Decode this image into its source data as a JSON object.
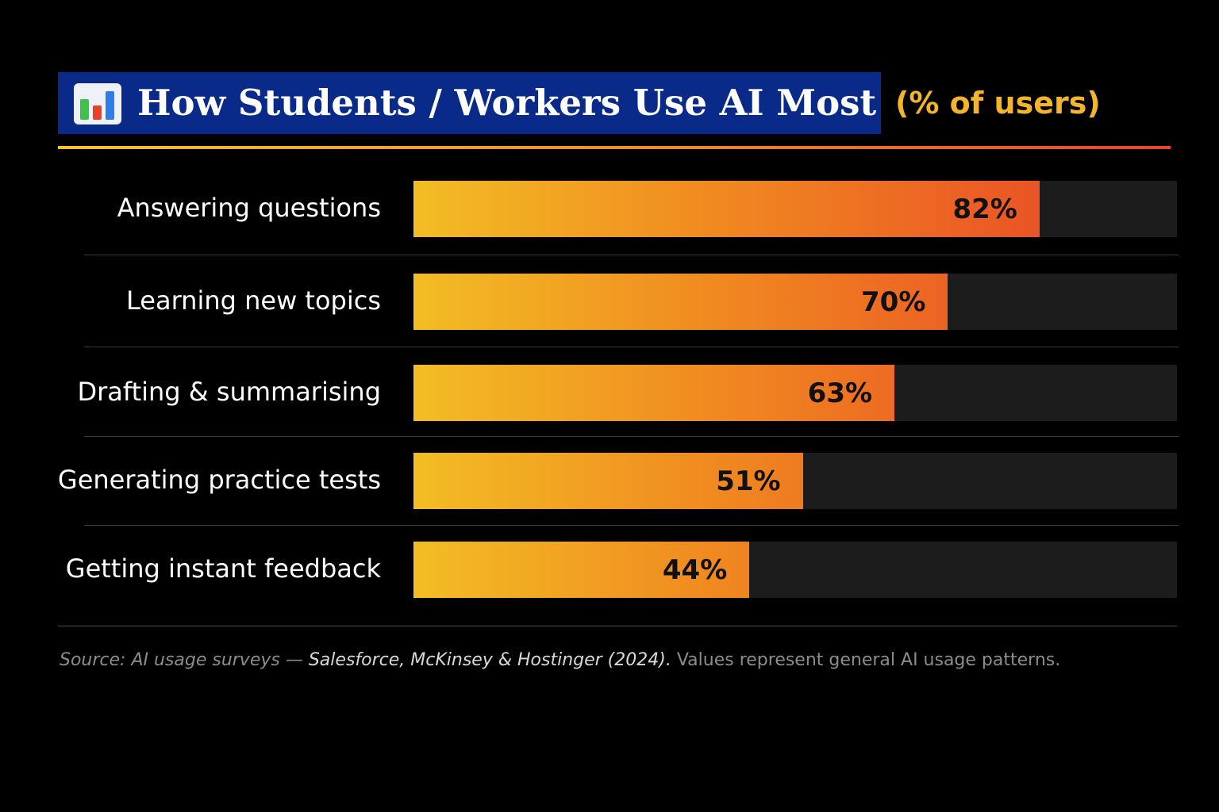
{
  "title": "How Students / Workers Use AI Most",
  "subtitle": "(% of users)",
  "icon": "bar-chart-icon",
  "colors": {
    "background": "#000000",
    "title_box": "#0a2a8a",
    "subtitle": "#f5b52a",
    "bar_start": "#f3bd24",
    "bar_end": "#ea4f26",
    "track": "#1c1c1c"
  },
  "chart_data": {
    "type": "bar",
    "orientation": "horizontal",
    "title": "How Students / Workers Use AI Most",
    "subtitle": "(% of users)",
    "categories": [
      "Answering questions",
      "Learning new topics",
      "Drafting & summarising",
      "Generating practice tests",
      "Getting instant feedback"
    ],
    "values": [
      82,
      70,
      63,
      51,
      44
    ],
    "value_labels": [
      "82%",
      "70%",
      "63%",
      "51%",
      "44%"
    ],
    "xlim": [
      0,
      100
    ],
    "grid": false,
    "legend": "none"
  },
  "source": {
    "prefix": "Source: AI usage surveys — ",
    "citation": "Salesforce, McKinsey & Hostinger (2024).",
    "note": " Values represent general AI usage patterns."
  }
}
